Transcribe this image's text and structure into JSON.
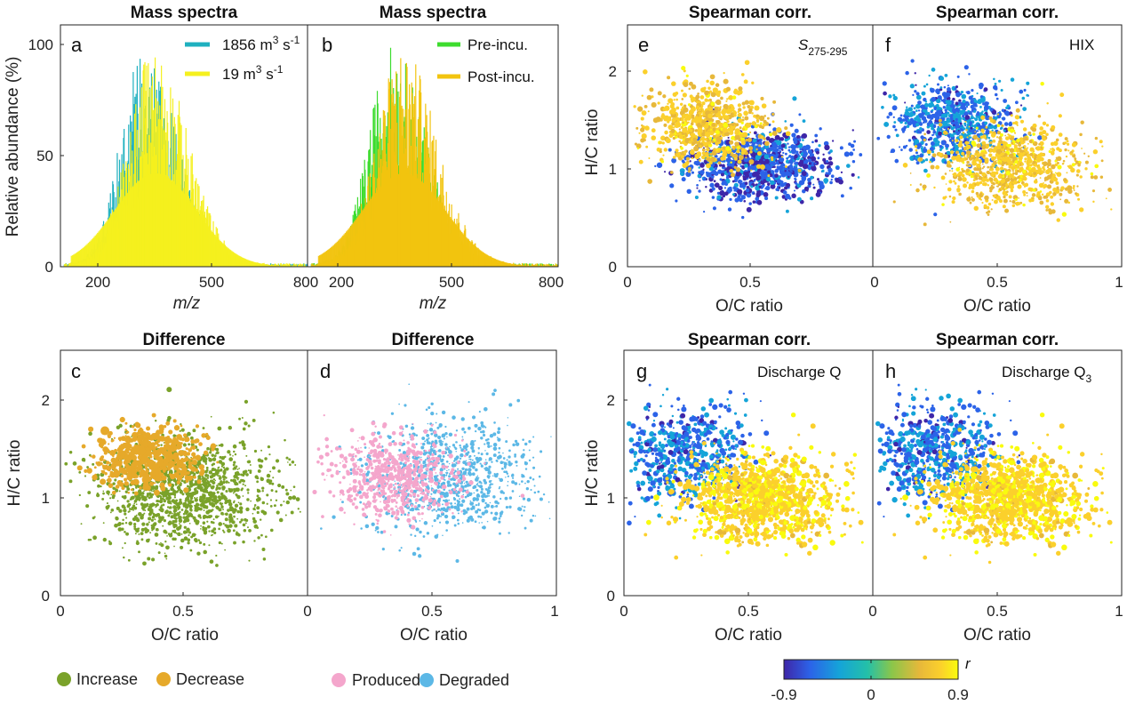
{
  "colors": {
    "teal": "#1fb0bf",
    "yellow": "#f5f01e",
    "green": "#3ddc2e",
    "gold": "#f2c40f",
    "increase": "#7aa22a",
    "decrease": "#e6a92a",
    "produced": "#f4a6cc",
    "degraded": "#5cb8e6",
    "parula": [
      "#3e26a8",
      "#2c63e8",
      "#15a4d8",
      "#24c0a8",
      "#8bc64a",
      "#e7b83a",
      "#fbd02c",
      "#f9fb0e"
    ]
  },
  "panels": {
    "a": {
      "label": "a",
      "title": "Mass spectra",
      "ylabel": "Relative abundance (%)",
      "xlabel": "m/z",
      "legend": [
        {
          "text": "1856 m",
          "sup": "3",
          "tail": " s",
          "sup2": "-1"
        },
        {
          "text": "19 m",
          "sup": "3",
          "tail": " s",
          "sup2": "-1"
        }
      ]
    },
    "b": {
      "label": "b",
      "title": "Mass spectra",
      "xlabel": "m/z",
      "legend": [
        {
          "text": "Pre-incu."
        },
        {
          "text": "Post-incu."
        }
      ]
    },
    "c": {
      "label": "c",
      "title": "Difference",
      "ylabel": "H/C ratio",
      "xlabel": "O/C ratio"
    },
    "d": {
      "label": "d",
      "title": "Difference",
      "xlabel": "O/C ratio"
    },
    "e": {
      "label": "e",
      "title": "Spearman corr.",
      "ylabel": "H/C ratio",
      "xlabel": "O/C ratio",
      "ann": "S",
      "ann_sub": "275-295"
    },
    "f": {
      "label": "f",
      "title": "Spearman corr.",
      "xlabel": "O/C ratio",
      "ann": "HIX"
    },
    "g": {
      "label": "g",
      "title": "Spearman corr.",
      "ylabel": "H/C ratio",
      "xlabel": "O/C ratio",
      "ann": "Discharge Q"
    },
    "h": {
      "label": "h",
      "title": "Spearman corr.",
      "xlabel": "O/C ratio",
      "ann": "Discharge Q",
      "ann_sub": "3"
    }
  },
  "ticks": {
    "mz_x": [
      "200",
      "500",
      "800"
    ],
    "ab_y": [
      "0",
      "50",
      "100"
    ],
    "oc_x": [
      "0",
      "0.5",
      "1"
    ],
    "hc_y": [
      "0",
      "1",
      "2"
    ]
  },
  "legends": {
    "cd_left": [
      {
        "label": "Increase",
        "color": "#7aa22a"
      },
      {
        "label": "Decrease",
        "color": "#e6a92a"
      }
    ],
    "cd_right": [
      {
        "label": "Produced",
        "color": "#f4a6cc"
      },
      {
        "label": "Degraded",
        "color": "#5cb8e6"
      }
    ],
    "colorbar": {
      "label": "r",
      "ticks": [
        "-0.9",
        "0",
        "0.9"
      ]
    }
  },
  "chart_data": [
    {
      "type": "bar",
      "panel": "a",
      "title": "Mass spectra",
      "xlabel": "m/z",
      "ylabel": "Relative abundance (%)",
      "xlim": [
        150,
        800
      ],
      "ylim": [
        0,
        110
      ],
      "series": [
        {
          "name": "1856 m3 s-1",
          "peak_mz": 380,
          "peak": 100
        },
        {
          "name": "19 m3 s-1",
          "peak_mz": 400,
          "peak": 100
        }
      ]
    },
    {
      "type": "bar",
      "panel": "b",
      "title": "Mass spectra",
      "xlabel": "m/z",
      "xlim": [
        150,
        800
      ],
      "ylim": [
        0,
        110
      ],
      "series": [
        {
          "name": "Pre-incu.",
          "peak_mz": 380,
          "peak": 100
        },
        {
          "name": "Post-incu.",
          "peak_mz": 395,
          "peak": 100
        }
      ]
    },
    {
      "type": "scatter",
      "panel": "c",
      "title": "Difference",
      "xlabel": "O/C ratio",
      "ylabel": "H/C ratio",
      "xlim": [
        0,
        1
      ],
      "ylim": [
        0,
        2.5
      ],
      "series": [
        {
          "name": "Increase"
        },
        {
          "name": "Decrease"
        }
      ]
    },
    {
      "type": "scatter",
      "panel": "d",
      "title": "Difference",
      "xlabel": "O/C ratio",
      "xlim": [
        0,
        1
      ],
      "ylim": [
        0,
        2.5
      ],
      "series": [
        {
          "name": "Produced"
        },
        {
          "name": "Degraded"
        }
      ]
    },
    {
      "type": "scatter",
      "panel": "e",
      "title": "Spearman corr.",
      "xlim": [
        0,
        1
      ],
      "ylim": [
        0,
        2.5
      ],
      "color_range": [
        -0.9,
        0.9
      ]
    },
    {
      "type": "scatter",
      "panel": "f",
      "title": "Spearman corr.",
      "xlim": [
        0,
        1
      ],
      "ylim": [
        0,
        2.5
      ],
      "color_range": [
        -0.9,
        0.9
      ]
    },
    {
      "type": "scatter",
      "panel": "g",
      "title": "Spearman corr.",
      "xlim": [
        0,
        1
      ],
      "ylim": [
        0,
        2.5
      ],
      "color_range": [
        -0.9,
        0.9
      ]
    },
    {
      "type": "scatter",
      "panel": "h",
      "title": "Spearman corr.",
      "xlim": [
        0,
        1
      ],
      "ylim": [
        0,
        2.5
      ],
      "color_range": [
        -0.9,
        0.9
      ]
    }
  ]
}
